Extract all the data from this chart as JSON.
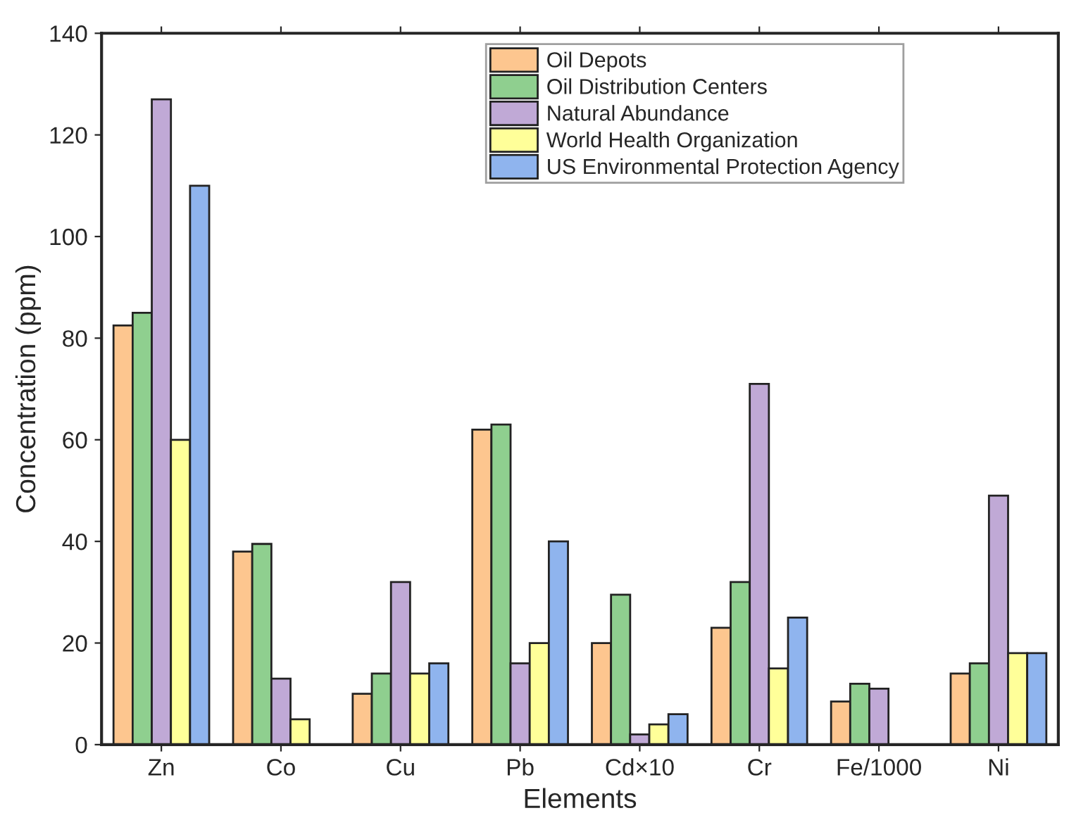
{
  "chart_data": {
    "type": "bar",
    "xlabel": "Elements",
    "ylabel": "Concentration (ppm)",
    "categories": [
      "Zn",
      "Co",
      "Cu",
      "Pb",
      "Cd×10",
      "Cr",
      "Fe/1000",
      "Ni"
    ],
    "series": [
      {
        "name": "Oil Depots",
        "color": "#fdc68f",
        "values": [
          82.5,
          38,
          10,
          62,
          20,
          23,
          8.5,
          14
        ]
      },
      {
        "name": "Oil Distribution Centers",
        "color": "#8fcf8f",
        "values": [
          85,
          39.5,
          14,
          63,
          29.5,
          32,
          12,
          16
        ]
      },
      {
        "name": "Natural Abundance",
        "color": "#c0a9d6",
        "values": [
          127,
          13,
          32,
          16,
          2,
          71,
          11,
          49
        ]
      },
      {
        "name": "World Health Organization",
        "color": "#ffff99",
        "values": [
          60,
          5,
          14,
          20,
          4,
          15,
          null,
          18
        ]
      },
      {
        "name": "US Environmental Protection Agency",
        "color": "#8fb4ee",
        "values": [
          110,
          null,
          16,
          40,
          6,
          25,
          null,
          18
        ]
      }
    ],
    "ylim": [
      0,
      140
    ],
    "yticks": [
      0,
      20,
      40,
      60,
      80,
      100,
      120,
      140
    ],
    "grid": false,
    "legend": "top"
  }
}
